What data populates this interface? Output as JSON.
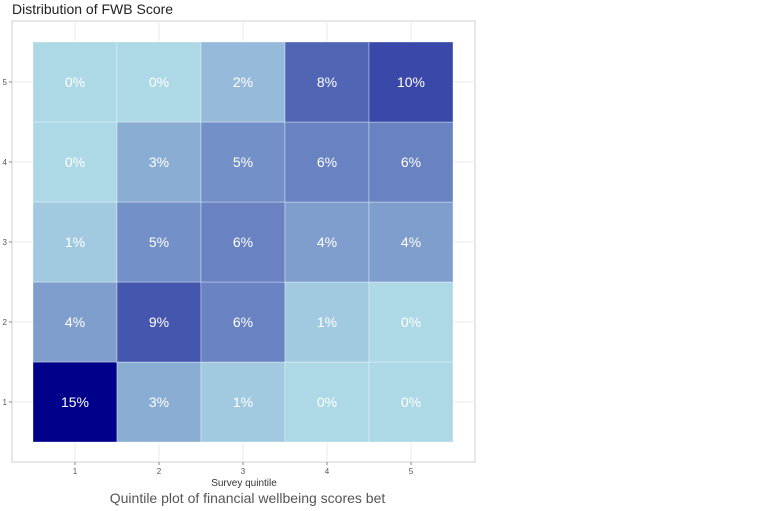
{
  "caption": "Quintile plot of financial wellbeing scores bet",
  "chart_data": {
    "type": "heatmap",
    "title": "Distribution of FWB Score",
    "xlabel": "Survey quintile",
    "ylabel": "",
    "x_categories": [
      "1",
      "2",
      "3",
      "4",
      "5"
    ],
    "y_categories": [
      "1",
      "2",
      "3",
      "4",
      "5"
    ],
    "cells": [
      {
        "x": "1",
        "y": "1",
        "value": 15,
        "label": "15%"
      },
      {
        "x": "2",
        "y": "1",
        "value": 3,
        "label": "3%"
      },
      {
        "x": "3",
        "y": "1",
        "value": 1,
        "label": "1%"
      },
      {
        "x": "4",
        "y": "1",
        "value": 0,
        "label": "0%"
      },
      {
        "x": "5",
        "y": "1",
        "value": 0,
        "label": "0%"
      },
      {
        "x": "1",
        "y": "2",
        "value": 4,
        "label": "4%"
      },
      {
        "x": "2",
        "y": "2",
        "value": 9,
        "label": "9%"
      },
      {
        "x": "3",
        "y": "2",
        "value": 6,
        "label": "6%"
      },
      {
        "x": "4",
        "y": "2",
        "value": 1,
        "label": "1%"
      },
      {
        "x": "5",
        "y": "2",
        "value": 0,
        "label": "0%"
      },
      {
        "x": "1",
        "y": "3",
        "value": 1,
        "label": "1%"
      },
      {
        "x": "2",
        "y": "3",
        "value": 5,
        "label": "5%"
      },
      {
        "x": "3",
        "y": "3",
        "value": 6,
        "label": "6%"
      },
      {
        "x": "4",
        "y": "3",
        "value": 4,
        "label": "4%"
      },
      {
        "x": "5",
        "y": "3",
        "value": 4,
        "label": "4%"
      },
      {
        "x": "1",
        "y": "4",
        "value": 0,
        "label": "0%"
      },
      {
        "x": "2",
        "y": "4",
        "value": 3,
        "label": "3%"
      },
      {
        "x": "3",
        "y": "4",
        "value": 5,
        "label": "5%"
      },
      {
        "x": "4",
        "y": "4",
        "value": 6,
        "label": "6%"
      },
      {
        "x": "5",
        "y": "4",
        "value": 6,
        "label": "6%"
      },
      {
        "x": "1",
        "y": "5",
        "value": 0,
        "label": "0%"
      },
      {
        "x": "2",
        "y": "5",
        "value": 0,
        "label": "0%"
      },
      {
        "x": "3",
        "y": "5",
        "value": 2,
        "label": "2%"
      },
      {
        "x": "4",
        "y": "5",
        "value": 8,
        "label": "8%"
      },
      {
        "x": "5",
        "y": "5",
        "value": 10,
        "label": "10%"
      }
    ],
    "color_scale": {
      "low": "#add8e6",
      "high": "#00008b",
      "domain": [
        0,
        15
      ]
    },
    "grid": true,
    "legend": "none"
  }
}
